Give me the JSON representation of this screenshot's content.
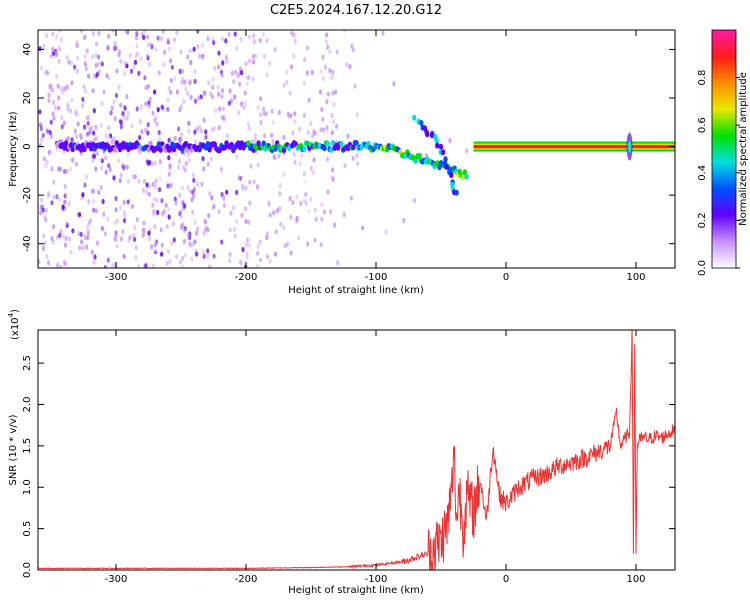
{
  "figure": {
    "title": "C2E5.2024.167.12.20.G12"
  },
  "chart_data": [
    {
      "type": "heatmap",
      "xlabel": "Height of straight line (km)",
      "ylabel": "Frequency (Hz)",
      "xlim": [
        -360,
        130
      ],
      "ylim": [
        -50,
        48
      ],
      "xticks": [
        "-300",
        "-200",
        "-100",
        "0",
        "100"
      ],
      "xtick_values": [
        -300,
        -200,
        -100,
        0,
        100
      ],
      "yticks": [
        "-40",
        "-20",
        "0",
        "20",
        "40"
      ],
      "ytick_values": [
        -40,
        -20,
        0,
        20,
        40
      ],
      "colorbar": {
        "label": "Normalized spectral amplitude",
        "ticks": [
          "0.0",
          "0.2",
          "0.4",
          "0.6",
          "0.8"
        ],
        "tick_values": [
          0.0,
          0.2,
          0.4,
          0.6,
          0.8
        ],
        "range": [
          0,
          1
        ],
        "colormap": [
          "#ff1aa8",
          "#ff1a1a",
          "#ff8c00",
          "#e8e800",
          "#00e000",
          "#00e0e0",
          "#0050ff",
          "#6000ff",
          "#c890ff",
          "#ffffff"
        ]
      },
      "features": {
        "main_trace": {
          "x_start": -345,
          "x_end": 130,
          "y": 0
        },
        "descending_branch": [
          [
            -70,
            11
          ],
          [
            -55,
            4
          ],
          [
            -45,
            -8
          ],
          [
            -38,
            -20
          ]
        ],
        "bright_line": {
          "x_start": -25,
          "x_end": 130,
          "y": 0
        },
        "spike_at": 95
      },
      "grid": false,
      "legend": "colorbar-right"
    },
    {
      "type": "line",
      "xlabel": "Height of straight line (km)",
      "ylabel": "SNR (10 * v/v)",
      "y_multiplier": "(x10",
      "y_exponent": "4",
      "xlim": [
        -360,
        130
      ],
      "ylim": [
        0,
        2.9
      ],
      "xticks": [
        "-300",
        "-200",
        "-100",
        "0",
        "100"
      ],
      "xtick_values": [
        -300,
        -200,
        -100,
        0,
        100
      ],
      "yticks": [
        "0.0",
        "0.5",
        "1.0",
        "1.5",
        "2.0",
        "2.5"
      ],
      "ytick_values": [
        0.0,
        0.5,
        1.0,
        1.5,
        2.0,
        2.5
      ],
      "series": [
        {
          "color": "#ee3333",
          "x": [
            -360,
            -300,
            -200,
            -150,
            -120,
            -100,
            -80,
            -60,
            -50,
            -45,
            -42,
            -40,
            -38,
            -36,
            -33,
            -30,
            -25,
            -20,
            -15,
            -10,
            -5,
            0,
            10,
            20,
            30,
            40,
            50,
            60,
            70,
            80,
            85,
            88,
            92,
            95,
            97,
            98,
            99,
            100,
            101,
            102,
            105,
            110,
            115,
            120,
            125,
            130
          ],
          "y": [
            0.02,
            0.02,
            0.02,
            0.03,
            0.04,
            0.06,
            0.1,
            0.2,
            0.35,
            0.55,
            0.9,
            1.4,
            0.6,
            1.0,
            0.5,
            0.9,
            0.7,
            1.1,
            0.6,
            1.5,
            0.9,
            0.8,
            1.0,
            1.1,
            1.15,
            1.25,
            1.3,
            1.35,
            1.42,
            1.5,
            1.9,
            1.5,
            1.6,
            1.65,
            2.9,
            0.2,
            2.7,
            0.2,
            1.5,
            1.55,
            1.6,
            1.58,
            1.62,
            1.6,
            1.65,
            1.7
          ]
        }
      ],
      "grid": false
    }
  ]
}
